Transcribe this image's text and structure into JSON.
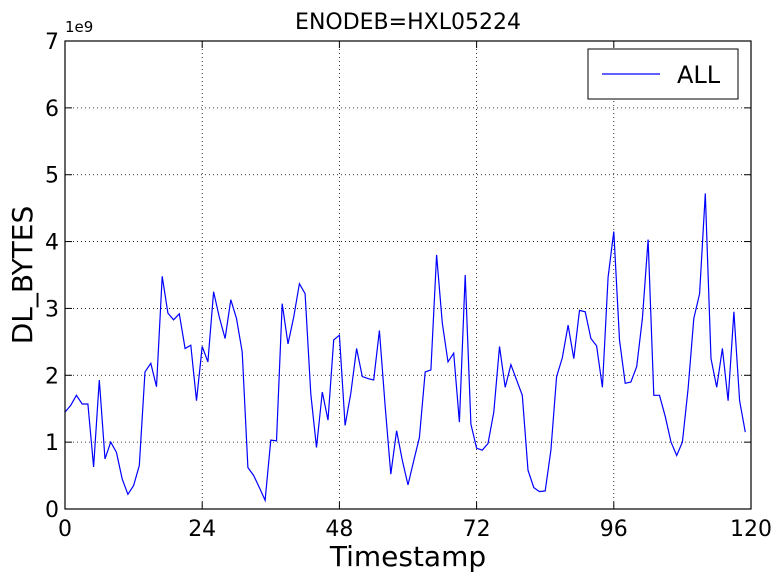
{
  "chart_data": {
    "type": "line",
    "title": "ENODEB=HXL05224",
    "xlabel": "Timestamp",
    "ylabel": "DL_BYTES",
    "y_offset_label": "1e9",
    "xlim": [
      0,
      120
    ],
    "ylim": [
      0,
      7
    ],
    "x_ticks": [
      0,
      24,
      48,
      72,
      96,
      120
    ],
    "y_ticks": [
      0,
      1,
      2,
      3,
      4,
      5,
      6,
      7
    ],
    "grid": true,
    "legend_position": "top-right",
    "series": [
      {
        "name": "ALL",
        "color": "#0000ff",
        "x": [
          0,
          1,
          2,
          3,
          4,
          5,
          6,
          7,
          8,
          9,
          10,
          11,
          12,
          13,
          14,
          15,
          16,
          17,
          18,
          19,
          20,
          21,
          22,
          23,
          24,
          25,
          26,
          27,
          28,
          29,
          30,
          31,
          32,
          33,
          34,
          35,
          36,
          37,
          38,
          39,
          40,
          41,
          42,
          43,
          44,
          45,
          46,
          47,
          48,
          49,
          50,
          51,
          52,
          53,
          54,
          55,
          56,
          57,
          58,
          59,
          60,
          61,
          62,
          63,
          64,
          65,
          66,
          67,
          68,
          69,
          70,
          71,
          72,
          73,
          74,
          75,
          76,
          77,
          78,
          79,
          80,
          81,
          82,
          83,
          84,
          85,
          86,
          87,
          88,
          89,
          90,
          91,
          92,
          93,
          94,
          95,
          96,
          97,
          98,
          99,
          100,
          101,
          102,
          103,
          104,
          105,
          106,
          107,
          108,
          109,
          110,
          111,
          112,
          113,
          114,
          115,
          116,
          117,
          118,
          119
        ],
        "values": [
          1.45,
          1.55,
          1.7,
          1.57,
          1.57,
          0.63,
          1.93,
          0.75,
          1.0,
          0.85,
          0.45,
          0.22,
          0.35,
          0.65,
          2.05,
          2.18,
          1.83,
          3.48,
          2.93,
          2.83,
          2.92,
          2.4,
          2.45,
          1.62,
          2.43,
          2.2,
          3.25,
          2.87,
          2.55,
          3.13,
          2.85,
          2.35,
          0.62,
          0.5,
          0.32,
          0.13,
          1.03,
          1.02,
          3.07,
          2.47,
          2.87,
          3.37,
          3.22,
          1.72,
          0.92,
          1.75,
          1.33,
          2.53,
          2.6,
          1.25,
          1.73,
          2.4,
          1.98,
          1.95,
          1.93,
          2.67,
          1.55,
          0.52,
          1.17,
          0.73,
          0.36,
          0.72,
          1.07,
          2.05,
          2.08,
          3.8,
          2.78,
          2.2,
          2.33,
          1.3,
          3.5,
          1.27,
          0.91,
          0.88,
          0.98,
          1.45,
          2.43,
          1.82,
          2.16,
          1.93,
          1.7,
          0.58,
          0.32,
          0.26,
          0.27,
          0.88,
          1.98,
          2.26,
          2.75,
          2.25,
          2.97,
          2.95,
          2.55,
          2.44,
          1.82,
          3.47,
          4.15,
          2.53,
          1.88,
          1.9,
          2.13,
          2.85,
          4.03,
          1.7,
          1.7,
          1.38,
          1.0,
          0.8,
          1.0,
          1.8,
          2.85,
          3.22,
          4.72,
          2.25,
          1.82,
          2.4,
          1.62,
          2.95,
          1.62,
          1.15
        ]
      }
    ]
  }
}
